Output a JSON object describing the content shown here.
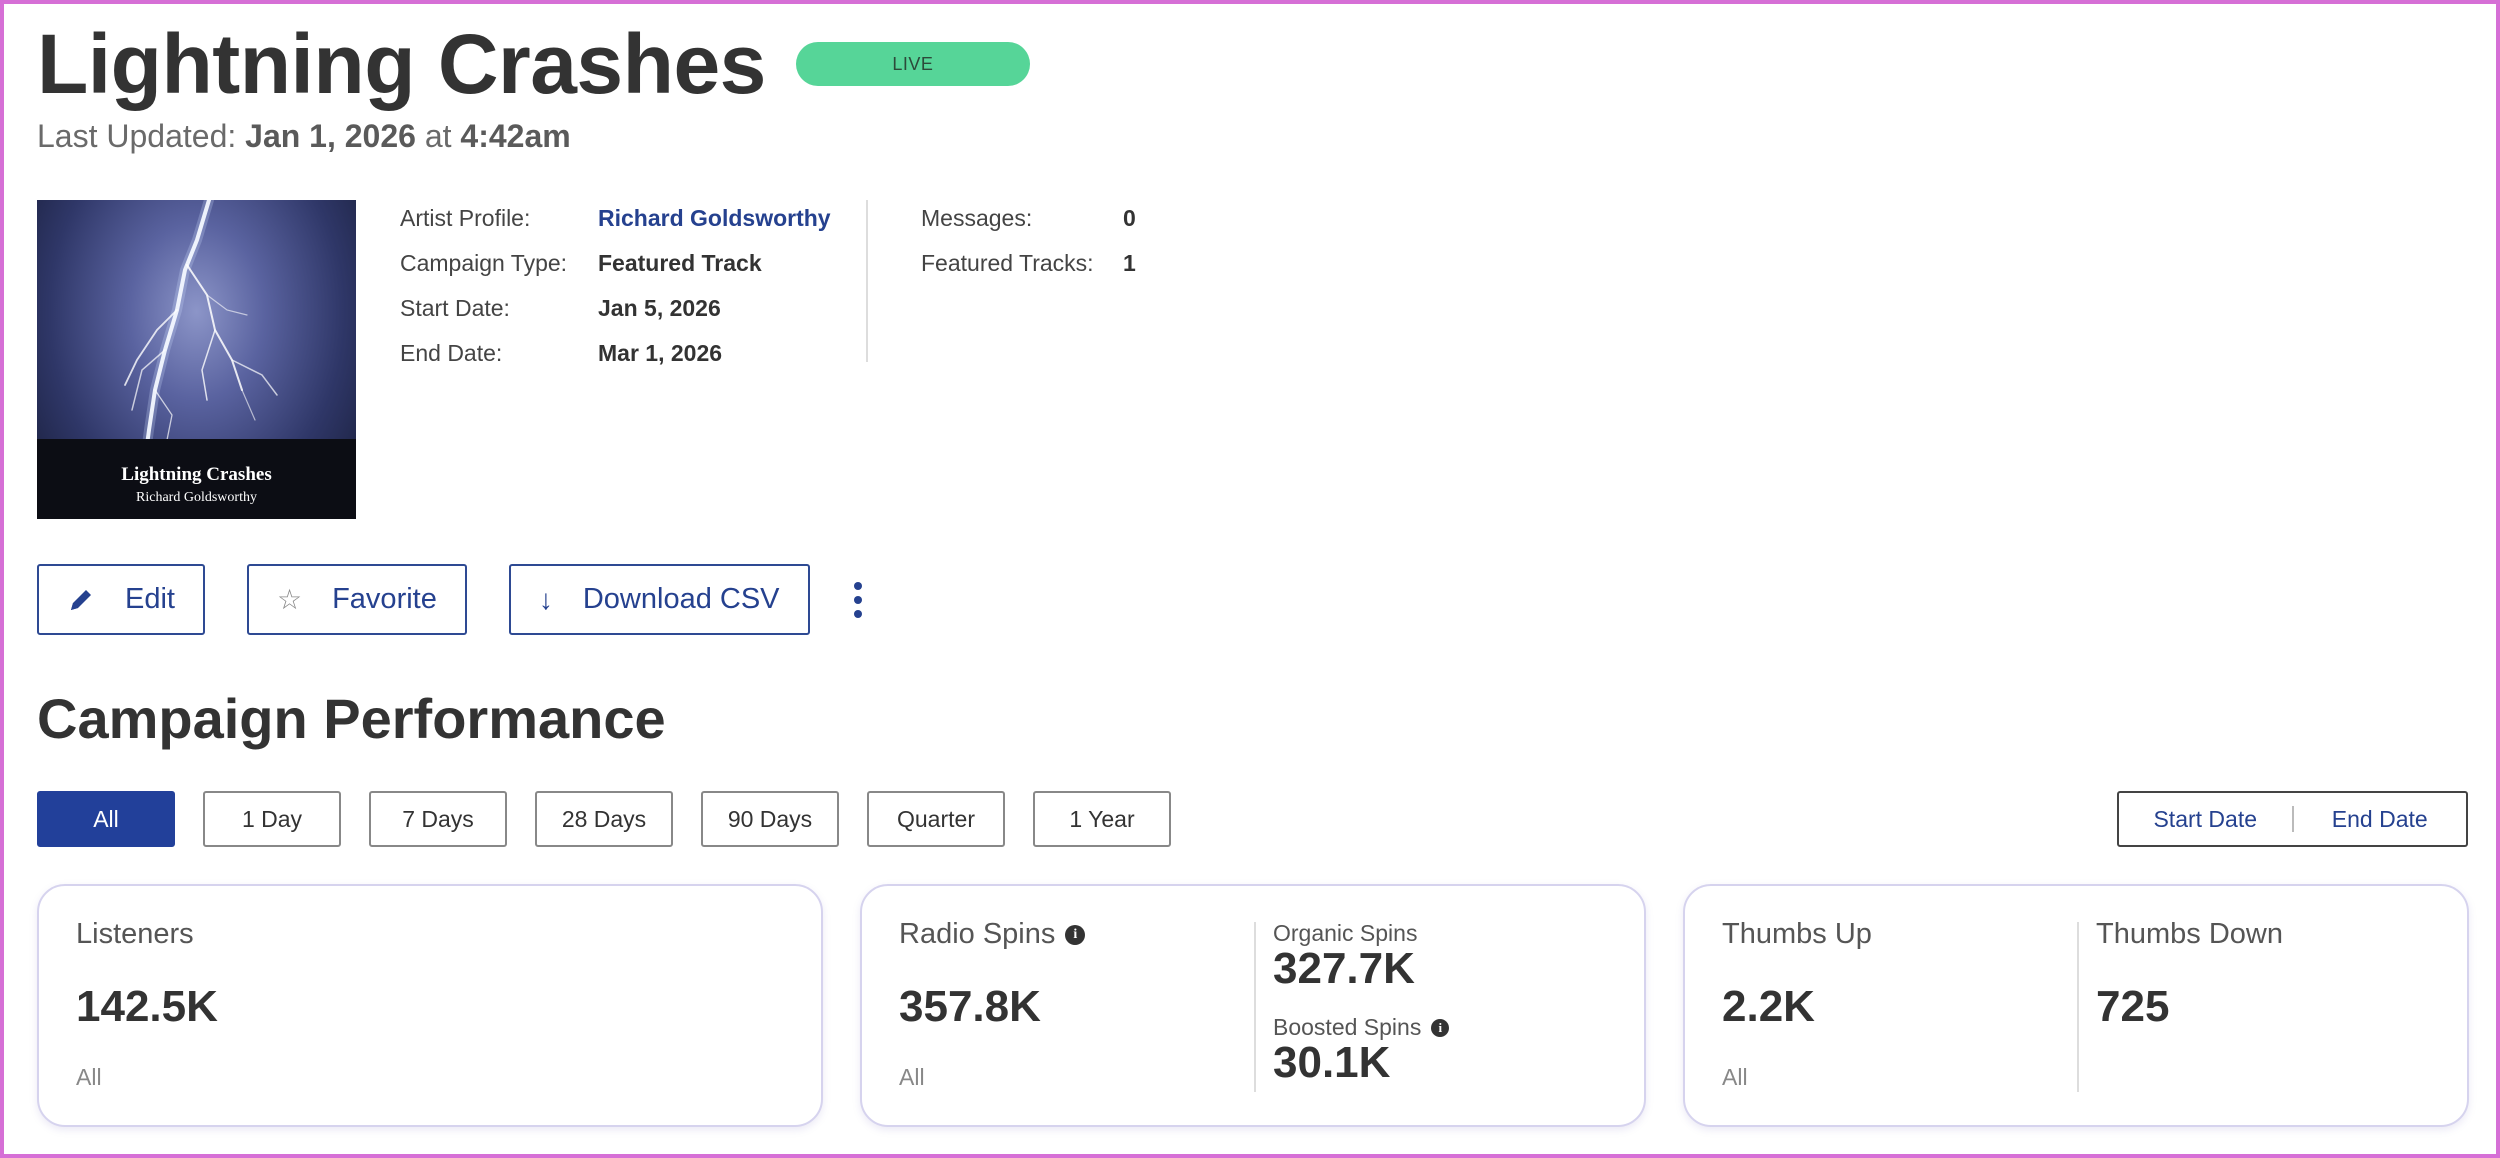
{
  "header": {
    "title": "Lightning Crashes",
    "status_badge": "LIVE",
    "last_updated_label": "Last Updated:",
    "last_updated_date": "Jan 1, 2026",
    "last_updated_at": "at",
    "last_updated_time": "4:42am"
  },
  "album": {
    "title": "Lightning Crashes",
    "artist": "Richard Goldsworthy"
  },
  "details": [
    {
      "label": "Artist Profile:",
      "value": "Richard Goldsworthy"
    },
    {
      "label": "Campaign Type:",
      "value": "Featured Track"
    },
    {
      "label": "Start Date:",
      "value": "Jan 5, 2026"
    },
    {
      "label": "End Date:",
      "value": "Mar 1, 2026"
    }
  ],
  "details_right": [
    {
      "label": "Messages:",
      "value": "0"
    },
    {
      "label": "Featured Tracks:",
      "value": "1"
    }
  ],
  "actions": {
    "edit": "Edit",
    "favorite": "Favorite",
    "download": "Download CSV"
  },
  "section_title": "Campaign Performance",
  "filters": [
    "All",
    "1 Day",
    "7 Days",
    "28 Days",
    "90 Days",
    "Quarter",
    "1 Year"
  ],
  "active_filter": "All",
  "date_range": {
    "start": "Start Date",
    "end": "End Date"
  },
  "cards": {
    "listeners": {
      "label": "Listeners",
      "value": "142.5K",
      "foot": "All"
    },
    "radio_spins": {
      "label": "Radio Spins",
      "value": "357.8K",
      "foot": "All",
      "organic_label": "Organic Spins",
      "organic_value": "327.7K",
      "boosted_label": "Boosted Spins",
      "boosted_value": "30.1K"
    },
    "thumbs": {
      "up_label": "Thumbs Up",
      "up_value": "2.2K",
      "foot": "All",
      "down_label": "Thumbs Down",
      "down_value": "725"
    }
  },
  "colors": {
    "accent": "#22409a",
    "live": "#56d598",
    "frame": "#d66fd6"
  }
}
